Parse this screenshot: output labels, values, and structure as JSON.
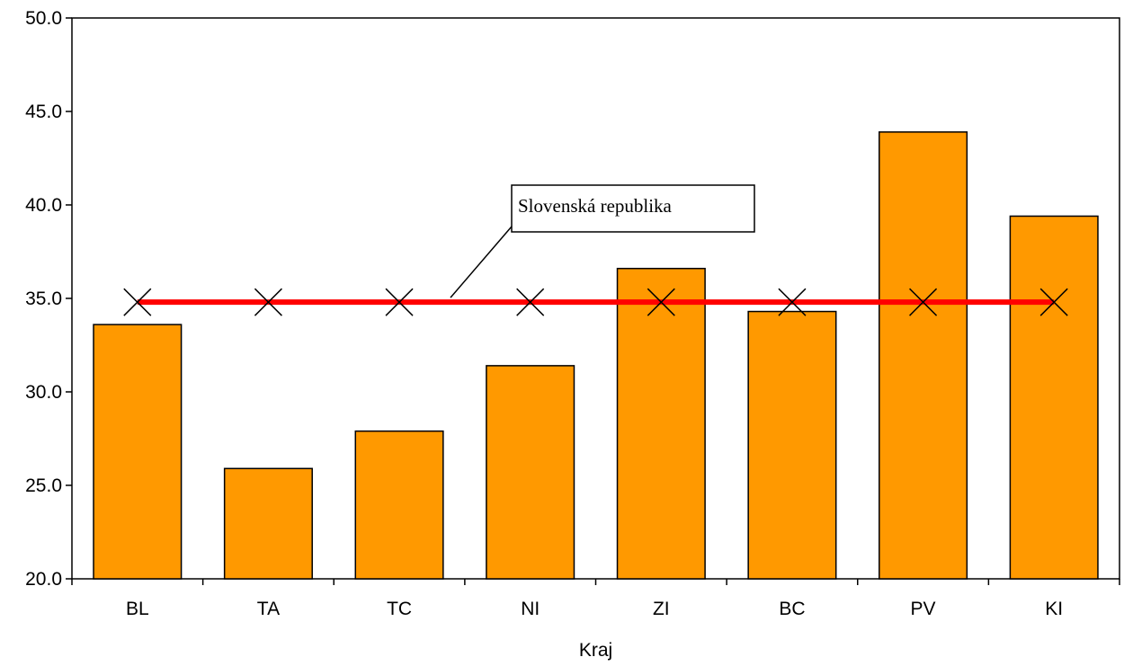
{
  "chart_data": {
    "type": "bar",
    "categories": [
      "BL",
      "TA",
      "TC",
      "NI",
      "ZI",
      "BC",
      "PV",
      "KI"
    ],
    "series": [
      {
        "type": "bar",
        "values": [
          33.6,
          25.9,
          27.9,
          31.4,
          36.6,
          34.3,
          43.9,
          39.4
        ],
        "color": "#FF9900"
      },
      {
        "name": "Slovenská republika",
        "type": "line",
        "values": [
          34.8,
          34.8,
          34.8,
          34.8,
          34.8,
          34.8,
          34.8,
          34.8
        ],
        "color": "#FF0000",
        "marker": "x"
      }
    ],
    "xlabel": "Kraj",
    "ylabel": "",
    "ylim": [
      20,
      50
    ],
    "yticks": [
      "20.0",
      "25.0",
      "30.0",
      "35.0",
      "40.0",
      "45.0",
      "50.0"
    ],
    "grid": false,
    "annotation": "Slovenská republika"
  }
}
